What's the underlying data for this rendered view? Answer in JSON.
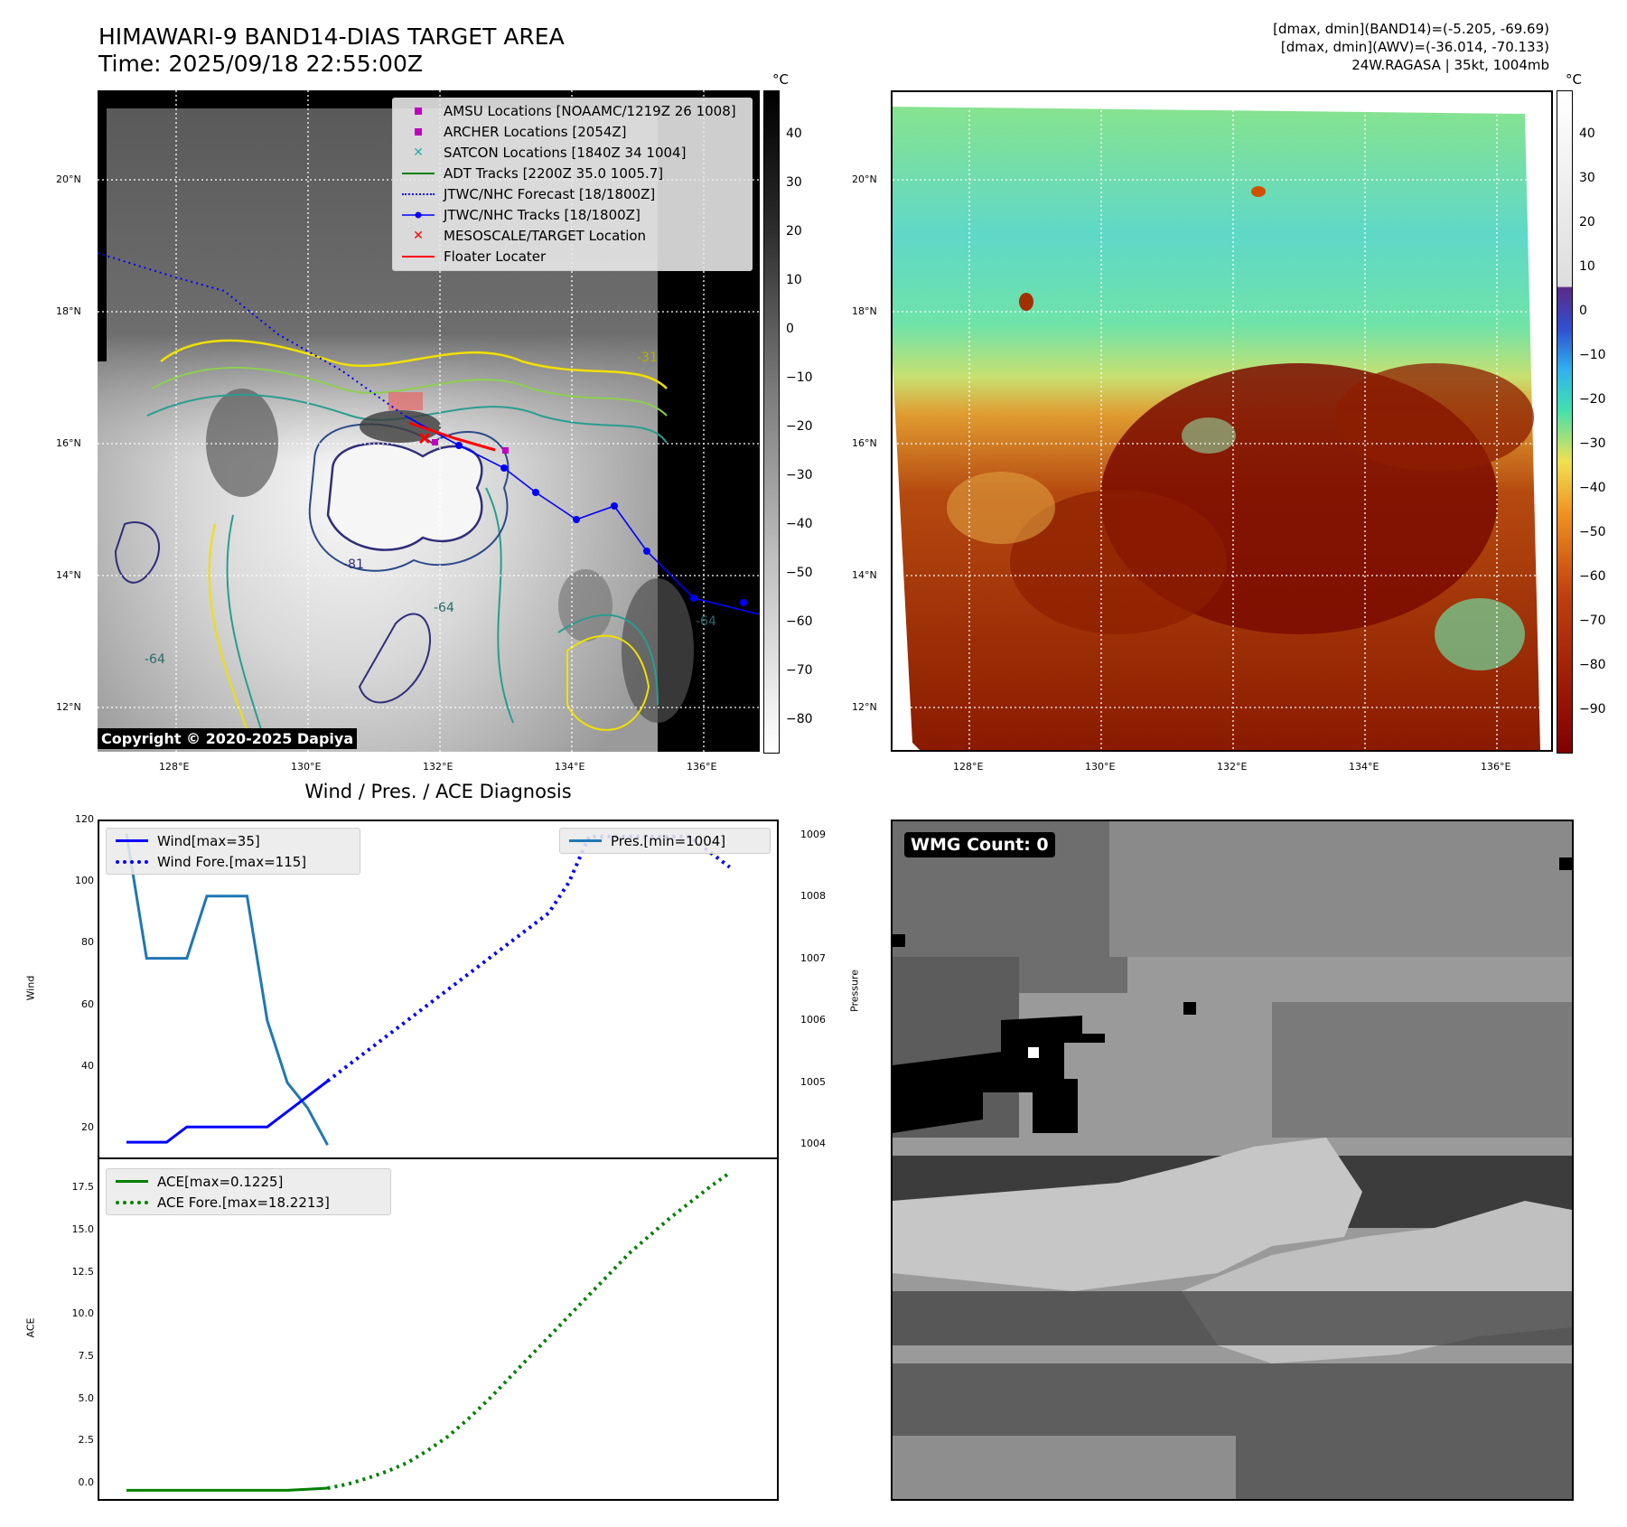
{
  "panel1": {
    "title_line1": "HIMAWARI-9 BAND14-DIAS TARGET AREA",
    "title_line2": "Time: 2025/09/18 22:55:00Z",
    "cbar_unit": "°C",
    "cbar_ticks": [
      "40",
      "30",
      "20",
      "10",
      "0",
      "−10",
      "−20",
      "−30",
      "−40",
      "−50",
      "−60",
      "−70",
      "−80"
    ],
    "lat_labels": [
      "20°N",
      "18°N",
      "16°N",
      "14°N",
      "12°N"
    ],
    "lon_labels": [
      "128°E",
      "130°E",
      "132°E",
      "134°E",
      "136°E"
    ],
    "contour_labels": [
      "-31",
      "-64",
      "-81",
      "-64",
      "-64"
    ],
    "copyright": "Copyright © 2020-2025 Dapiya",
    "legend": [
      {
        "label": "AMSU Locations [NOAAMC/1219Z 26 1008]",
        "color": "#c000c0",
        "symbol": "square"
      },
      {
        "label": "ARCHER Locations [2054Z]",
        "color": "#c000c0",
        "symbol": "square"
      },
      {
        "label": "SATCON Locations [1840Z 34 1004]",
        "color": "#20b0b0",
        "symbol": "x"
      },
      {
        "label": "ADT Tracks [2200Z 35.0 1005.7]",
        "color": "#008000",
        "symbol": "line"
      },
      {
        "label": "JTWC/NHC Forecast [18/1800Z]",
        "color": "#0000ff",
        "symbol": "dotted"
      },
      {
        "label": "JTWC/NHC Tracks [18/1800Z]",
        "color": "#0000ff",
        "symbol": "linedot"
      },
      {
        "label": "MESOSCALE/TARGET Location",
        "color": "#ff0000",
        "symbol": "x"
      },
      {
        "label": "Floater Locater",
        "color": "#ff0000",
        "symbol": "line"
      }
    ]
  },
  "panel2": {
    "header_line1": "[dmax, dmin](BAND14)=(-5.205, -69.69)",
    "header_line2": "[dmax, dmin](AWV)=(-36.014, -70.133)",
    "header_line3": "24W.RAGASA | 35kt, 1004mb",
    "cbar_unit": "°C",
    "cbar_ticks": [
      "40",
      "30",
      "20",
      "10",
      "0",
      "−10",
      "−20",
      "−30",
      "−40",
      "−50",
      "−60",
      "−70",
      "−80",
      "−90"
    ],
    "lat_labels": [
      "20°N",
      "18°N",
      "16°N",
      "14°N",
      "12°N"
    ],
    "lon_labels": [
      "128°E",
      "130°E",
      "132°E",
      "134°E",
      "136°E"
    ]
  },
  "panel3": {
    "title": "Wind / Pres. / ACE Diagnosis",
    "wind_ylabel": "Wind",
    "pres_ylabel": "Pressure",
    "ace_ylabel": "ACE",
    "wind_ticks": [
      "120",
      "100",
      "80",
      "60",
      "40",
      "20"
    ],
    "pres_ticks": [
      "1009",
      "1008",
      "1007",
      "1006",
      "1005",
      "1004"
    ],
    "ace_ticks": [
      "17.5",
      "15.0",
      "12.5",
      "10.0",
      "7.5",
      "5.0",
      "2.5",
      "0.0"
    ],
    "legend_wind": "Wind[max=35]",
    "legend_wind_fore": "Wind Fore.[max=115]",
    "legend_pres": "Pres.[min=1004]",
    "legend_ace": "ACE[max=0.1225]",
    "legend_ace_fore": "ACE Fore.[max=18.2213]"
  },
  "panel4": {
    "label": "WMG Count: 0"
  },
  "colors": {
    "wind": "#0000ff",
    "pressure": "#1f77b4",
    "ace": "#008000",
    "track": "#0000ff",
    "target": "#ff0000"
  },
  "chart_data": [
    {
      "type": "line",
      "title": "Wind / Pres. / ACE Diagnosis",
      "ylabel": "Wind",
      "ylim": [
        10,
        120
      ],
      "series": [
        {
          "name": "Wind[max=35]",
          "x": [
            0,
            1,
            2,
            3,
            4,
            5,
            6,
            7,
            8,
            9,
            10
          ],
          "values": [
            15,
            15,
            15,
            20,
            20,
            20,
            20,
            20,
            25,
            30,
            35
          ]
        },
        {
          "name": "Wind Fore.[max=115]",
          "x": [
            10,
            11,
            12,
            13,
            14,
            15,
            16,
            17,
            18,
            19,
            20,
            21,
            22,
            23,
            24,
            25,
            26,
            27,
            28,
            29,
            30
          ],
          "values": [
            35,
            40,
            45,
            50,
            55,
            60,
            65,
            70,
            75,
            80,
            85,
            90,
            100,
            115,
            115,
            115,
            115,
            115,
            115,
            110,
            105
          ]
        }
      ]
    },
    {
      "type": "line",
      "ylabel": "Pressure",
      "ylim": [
        1003.8,
        1009.2
      ],
      "series": [
        {
          "name": "Pres.[min=1004]",
          "x": [
            0,
            1,
            2,
            3,
            4,
            5,
            6,
            7,
            8,
            9,
            10
          ],
          "values": [
            1009,
            1007,
            1007,
            1007,
            1008,
            1008,
            1008,
            1006,
            1005,
            1004.6,
            1004
          ]
        }
      ]
    },
    {
      "type": "line",
      "ylabel": "ACE",
      "ylim": [
        -0.5,
        19
      ],
      "series": [
        {
          "name": "ACE[max=0.1225]",
          "x": [
            0,
            1,
            2,
            3,
            4,
            5,
            6,
            7,
            8,
            9,
            10
          ],
          "values": [
            0,
            0,
            0,
            0,
            0,
            0,
            0,
            0,
            0,
            0.06,
            0.1225
          ]
        },
        {
          "name": "ACE Fore.[max=18.2213]",
          "x": [
            10,
            11,
            12,
            13,
            14,
            15,
            16,
            17,
            18,
            19,
            20,
            21,
            22,
            23,
            24,
            25,
            26,
            27,
            28,
            29,
            30
          ],
          "values": [
            0.1225,
            0.35,
            0.7,
            1.1,
            1.6,
            2.3,
            3.1,
            4.1,
            5.2,
            6.4,
            7.6,
            8.8,
            10.0,
            11.2,
            12.4,
            13.6,
            14.6,
            15.6,
            16.5,
            17.4,
            18.2213
          ]
        }
      ]
    }
  ]
}
